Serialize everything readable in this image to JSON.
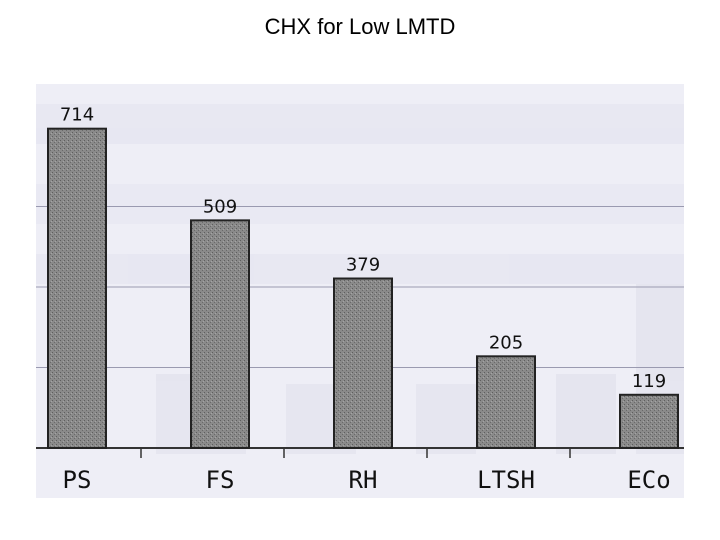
{
  "title": "CHX for Low LMTD",
  "chart_data": {
    "type": "bar",
    "title": "CHX for Low LMTD",
    "categories": [
      "PS",
      "FS",
      "RH",
      "LTSH",
      "ECo"
    ],
    "values": [
      714,
      509,
      379,
      205,
      119
    ],
    "value_labels": [
      "714",
      "509",
      "379",
      "205",
      "119"
    ],
    "xlabel": "",
    "ylabel": "",
    "ylim": [
      0,
      720
    ],
    "grid": true,
    "legend": "none",
    "bar_color": "#8c8c8c",
    "background": "scanned paper"
  }
}
